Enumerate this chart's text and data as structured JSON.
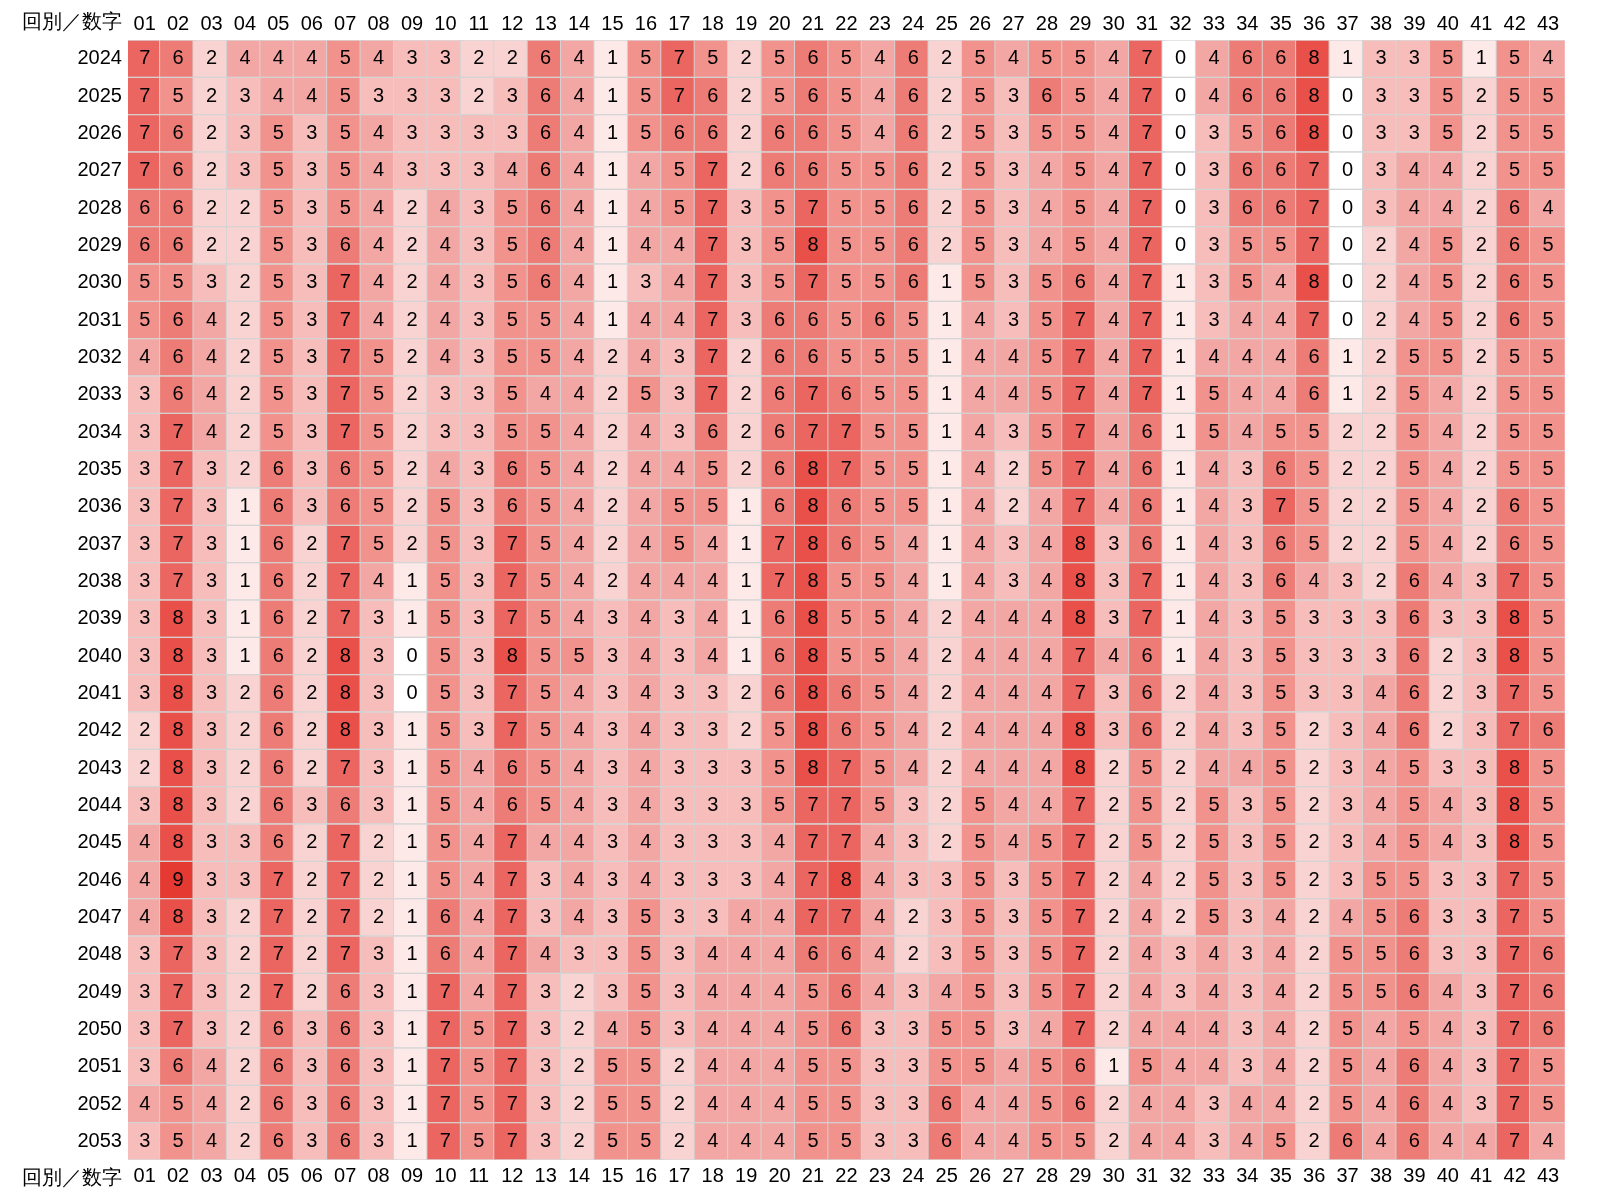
{
  "chart_data": {
    "type": "heatmap",
    "xlabel": "回別／数字",
    "color": "#e53a32",
    "data_labels": true,
    "categories": [
      "01",
      "02",
      "03",
      "04",
      "05",
      "06",
      "07",
      "08",
      "09",
      "10",
      "11",
      "12",
      "13",
      "14",
      "15",
      "16",
      "17",
      "18",
      "19",
      "20",
      "21",
      "22",
      "23",
      "24",
      "25",
      "26",
      "27",
      "28",
      "29",
      "30",
      "31",
      "32",
      "33",
      "34",
      "35",
      "36",
      "37",
      "38",
      "39",
      "40",
      "41",
      "42",
      "43"
    ],
    "y_categories": [
      "2024",
      "2025",
      "2026",
      "2027",
      "2028",
      "2029",
      "2030",
      "2031",
      "2032",
      "2033",
      "2034",
      "2035",
      "2036",
      "2037",
      "2038",
      "2039",
      "2040",
      "2041",
      "2042",
      "2043",
      "2044",
      "2045",
      "2046",
      "2047",
      "2048",
      "2049",
      "2050",
      "2051",
      "2052",
      "2053"
    ],
    "cells": [
      [
        7,
        6,
        2,
        4,
        4,
        4,
        5,
        4,
        3,
        3,
        2,
        2,
        6,
        4,
        1,
        5,
        7,
        5,
        2,
        5,
        6,
        5,
        4,
        6,
        2,
        5,
        4,
        5,
        5,
        4,
        7,
        0,
        4,
        6,
        6,
        8,
        1,
        3,
        3,
        5,
        1,
        5,
        4
      ],
      [
        7,
        5,
        2,
        3,
        4,
        4,
        5,
        3,
        3,
        3,
        2,
        3,
        6,
        4,
        1,
        5,
        7,
        6,
        2,
        5,
        6,
        5,
        4,
        6,
        2,
        5,
        3,
        6,
        5,
        4,
        7,
        0,
        4,
        6,
        6,
        8,
        0,
        3,
        3,
        5,
        2,
        5,
        5
      ],
      [
        7,
        6,
        2,
        3,
        5,
        3,
        5,
        4,
        3,
        3,
        3,
        3,
        6,
        4,
        1,
        5,
        6,
        6,
        2,
        6,
        6,
        5,
        4,
        6,
        2,
        5,
        3,
        5,
        5,
        4,
        7,
        0,
        3,
        5,
        6,
        8,
        0,
        3,
        3,
        5,
        2,
        5,
        5
      ],
      [
        7,
        6,
        2,
        3,
        5,
        3,
        5,
        4,
        3,
        3,
        3,
        4,
        6,
        4,
        1,
        4,
        5,
        7,
        2,
        6,
        6,
        5,
        5,
        6,
        2,
        5,
        3,
        4,
        5,
        4,
        7,
        0,
        3,
        6,
        6,
        7,
        0,
        3,
        4,
        4,
        2,
        5,
        5
      ],
      [
        6,
        6,
        2,
        2,
        5,
        3,
        5,
        4,
        2,
        4,
        3,
        5,
        6,
        4,
        1,
        4,
        5,
        7,
        3,
        5,
        7,
        5,
        5,
        6,
        2,
        5,
        3,
        4,
        5,
        4,
        7,
        0,
        3,
        6,
        6,
        7,
        0,
        3,
        4,
        4,
        2,
        6,
        4
      ],
      [
        6,
        6,
        2,
        2,
        5,
        3,
        6,
        4,
        2,
        4,
        3,
        5,
        6,
        4,
        1,
        4,
        4,
        7,
        3,
        5,
        8,
        5,
        5,
        6,
        2,
        5,
        3,
        4,
        5,
        4,
        7,
        0,
        3,
        5,
        5,
        7,
        0,
        2,
        4,
        5,
        2,
        6,
        5
      ],
      [
        5,
        5,
        3,
        2,
        5,
        3,
        7,
        4,
        2,
        4,
        3,
        5,
        6,
        4,
        1,
        3,
        4,
        7,
        3,
        5,
        7,
        5,
        5,
        6,
        1,
        5,
        3,
        5,
        6,
        4,
        7,
        1,
        3,
        5,
        4,
        8,
        0,
        2,
        4,
        5,
        2,
        6,
        5
      ],
      [
        5,
        6,
        4,
        2,
        5,
        3,
        7,
        4,
        2,
        4,
        3,
        5,
        5,
        4,
        1,
        4,
        4,
        7,
        3,
        6,
        6,
        5,
        6,
        5,
        1,
        4,
        3,
        5,
        7,
        4,
        7,
        1,
        3,
        4,
        4,
        7,
        0,
        2,
        4,
        5,
        2,
        6,
        5
      ],
      [
        4,
        6,
        4,
        2,
        5,
        3,
        7,
        5,
        2,
        4,
        3,
        5,
        5,
        4,
        2,
        4,
        3,
        7,
        2,
        6,
        6,
        5,
        5,
        5,
        1,
        4,
        4,
        5,
        7,
        4,
        7,
        1,
        4,
        4,
        4,
        6,
        1,
        2,
        5,
        5,
        2,
        5,
        5
      ],
      [
        3,
        6,
        4,
        2,
        5,
        3,
        7,
        5,
        2,
        3,
        3,
        5,
        4,
        4,
        2,
        5,
        3,
        7,
        2,
        6,
        7,
        6,
        5,
        5,
        1,
        4,
        4,
        5,
        7,
        4,
        7,
        1,
        5,
        4,
        4,
        6,
        1,
        2,
        5,
        4,
        2,
        5,
        5
      ],
      [
        3,
        7,
        4,
        2,
        5,
        3,
        7,
        5,
        2,
        3,
        3,
        5,
        5,
        4,
        2,
        4,
        3,
        6,
        2,
        6,
        7,
        7,
        5,
        5,
        1,
        4,
        3,
        5,
        7,
        4,
        6,
        1,
        5,
        4,
        5,
        5,
        2,
        2,
        5,
        4,
        2,
        5,
        5
      ],
      [
        3,
        7,
        3,
        2,
        6,
        3,
        6,
        5,
        2,
        4,
        3,
        6,
        5,
        4,
        2,
        4,
        4,
        5,
        2,
        6,
        8,
        7,
        5,
        5,
        1,
        4,
        2,
        5,
        7,
        4,
        6,
        1,
        4,
        3,
        6,
        5,
        2,
        2,
        5,
        4,
        2,
        5,
        5
      ],
      [
        3,
        7,
        3,
        1,
        6,
        3,
        6,
        5,
        2,
        5,
        3,
        6,
        5,
        4,
        2,
        4,
        5,
        5,
        1,
        6,
        8,
        6,
        5,
        5,
        1,
        4,
        2,
        4,
        7,
        4,
        6,
        1,
        4,
        3,
        7,
        5,
        2,
        2,
        5,
        4,
        2,
        6,
        5
      ],
      [
        3,
        7,
        3,
        1,
        6,
        2,
        7,
        5,
        2,
        5,
        3,
        7,
        5,
        4,
        2,
        4,
        5,
        4,
        1,
        7,
        8,
        6,
        5,
        4,
        1,
        4,
        3,
        4,
        8,
        3,
        6,
        1,
        4,
        3,
        6,
        5,
        2,
        2,
        5,
        4,
        2,
        6,
        5
      ],
      [
        3,
        7,
        3,
        1,
        6,
        2,
        7,
        4,
        1,
        5,
        3,
        7,
        5,
        4,
        2,
        4,
        4,
        4,
        1,
        7,
        8,
        5,
        5,
        4,
        1,
        4,
        3,
        4,
        8,
        3,
        7,
        1,
        4,
        3,
        6,
        4,
        3,
        2,
        6,
        4,
        3,
        7,
        5
      ],
      [
        3,
        8,
        3,
        1,
        6,
        2,
        7,
        3,
        1,
        5,
        3,
        7,
        5,
        4,
        3,
        4,
        3,
        4,
        1,
        6,
        8,
        5,
        5,
        4,
        2,
        4,
        4,
        4,
        8,
        3,
        7,
        1,
        4,
        3,
        5,
        3,
        3,
        3,
        6,
        3,
        3,
        8,
        5
      ],
      [
        3,
        8,
        3,
        1,
        6,
        2,
        8,
        3,
        0,
        5,
        3,
        8,
        5,
        5,
        3,
        4,
        3,
        4,
        1,
        6,
        8,
        5,
        5,
        4,
        2,
        4,
        4,
        4,
        7,
        4,
        6,
        1,
        4,
        3,
        5,
        3,
        3,
        3,
        6,
        2,
        3,
        8,
        5
      ],
      [
        3,
        8,
        3,
        2,
        6,
        2,
        8,
        3,
        0,
        5,
        3,
        7,
        5,
        4,
        3,
        4,
        3,
        3,
        2,
        6,
        8,
        6,
        5,
        4,
        2,
        4,
        4,
        4,
        7,
        3,
        6,
        2,
        4,
        3,
        5,
        3,
        3,
        4,
        6,
        2,
        3,
        7,
        5
      ],
      [
        2,
        8,
        3,
        2,
        6,
        2,
        8,
        3,
        1,
        5,
        3,
        7,
        5,
        4,
        3,
        4,
        3,
        3,
        2,
        5,
        8,
        6,
        5,
        4,
        2,
        4,
        4,
        4,
        8,
        3,
        6,
        2,
        4,
        3,
        5,
        2,
        3,
        4,
        6,
        2,
        3,
        7,
        6
      ],
      [
        2,
        8,
        3,
        2,
        6,
        2,
        7,
        3,
        1,
        5,
        4,
        6,
        5,
        4,
        3,
        4,
        3,
        3,
        3,
        5,
        8,
        7,
        5,
        4,
        2,
        4,
        4,
        4,
        8,
        2,
        5,
        2,
        4,
        4,
        5,
        2,
        3,
        4,
        5,
        3,
        3,
        8,
        5
      ],
      [
        3,
        8,
        3,
        2,
        6,
        3,
        6,
        3,
        1,
        5,
        4,
        6,
        5,
        4,
        3,
        4,
        3,
        3,
        3,
        5,
        7,
        7,
        5,
        3,
        2,
        5,
        4,
        4,
        7,
        2,
        5,
        2,
        5,
        3,
        5,
        2,
        3,
        4,
        5,
        4,
        3,
        8,
        5
      ],
      [
        4,
        8,
        3,
        3,
        6,
        2,
        7,
        2,
        1,
        5,
        4,
        7,
        4,
        4,
        3,
        4,
        3,
        3,
        3,
        4,
        7,
        7,
        4,
        3,
        2,
        5,
        4,
        5,
        7,
        2,
        5,
        2,
        5,
        3,
        5,
        2,
        3,
        4,
        5,
        4,
        3,
        8,
        5
      ],
      [
        4,
        9,
        3,
        3,
        7,
        2,
        7,
        2,
        1,
        5,
        4,
        7,
        3,
        4,
        3,
        4,
        3,
        3,
        3,
        4,
        7,
        8,
        4,
        3,
        3,
        5,
        3,
        5,
        7,
        2,
        4,
        2,
        5,
        3,
        5,
        2,
        3,
        5,
        5,
        3,
        3,
        7,
        5
      ],
      [
        4,
        8,
        3,
        2,
        7,
        2,
        7,
        2,
        1,
        6,
        4,
        7,
        3,
        4,
        3,
        5,
        3,
        3,
        4,
        4,
        7,
        7,
        4,
        2,
        3,
        5,
        3,
        5,
        7,
        2,
        4,
        2,
        5,
        3,
        4,
        2,
        4,
        5,
        6,
        3,
        3,
        7,
        5
      ],
      [
        3,
        7,
        3,
        2,
        7,
        2,
        7,
        3,
        1,
        6,
        4,
        7,
        4,
        3,
        3,
        5,
        3,
        4,
        4,
        4,
        6,
        6,
        4,
        2,
        3,
        5,
        3,
        5,
        7,
        2,
        4,
        3,
        4,
        3,
        4,
        2,
        5,
        5,
        6,
        3,
        3,
        7,
        6
      ],
      [
        3,
        7,
        3,
        2,
        7,
        2,
        6,
        3,
        1,
        7,
        4,
        7,
        3,
        2,
        3,
        5,
        3,
        4,
        4,
        4,
        5,
        6,
        4,
        3,
        4,
        5,
        3,
        5,
        7,
        2,
        4,
        3,
        4,
        3,
        4,
        2,
        5,
        5,
        6,
        4,
        3,
        7,
        6
      ],
      [
        3,
        7,
        3,
        2,
        6,
        3,
        6,
        3,
        1,
        7,
        5,
        7,
        3,
        2,
        4,
        5,
        3,
        4,
        4,
        4,
        5,
        6,
        3,
        3,
        5,
        5,
        3,
        4,
        7,
        2,
        4,
        4,
        4,
        3,
        4,
        2,
        5,
        4,
        5,
        4,
        3,
        7,
        6
      ],
      [
        3,
        6,
        4,
        2,
        6,
        3,
        6,
        3,
        1,
        7,
        5,
        7,
        3,
        2,
        5,
        5,
        2,
        4,
        4,
        4,
        5,
        5,
        3,
        3,
        5,
        5,
        4,
        5,
        6,
        1,
        5,
        4,
        4,
        3,
        4,
        2,
        5,
        4,
        6,
        4,
        3,
        7,
        5
      ],
      [
        4,
        5,
        4,
        2,
        6,
        3,
        6,
        3,
        1,
        7,
        5,
        7,
        3,
        2,
        5,
        5,
        2,
        4,
        4,
        4,
        5,
        5,
        3,
        3,
        6,
        4,
        4,
        5,
        6,
        2,
        4,
        4,
        3,
        4,
        4,
        2,
        5,
        4,
        6,
        4,
        3,
        7,
        5
      ],
      [
        3,
        5,
        4,
        2,
        6,
        3,
        6,
        3,
        1,
        7,
        5,
        7,
        3,
        2,
        5,
        5,
        2,
        4,
        4,
        4,
        5,
        5,
        3,
        3,
        6,
        4,
        4,
        5,
        5,
        2,
        4,
        4,
        3,
        4,
        5,
        2,
        6,
        4,
        6,
        4,
        4,
        7,
        4
      ]
    ]
  }
}
